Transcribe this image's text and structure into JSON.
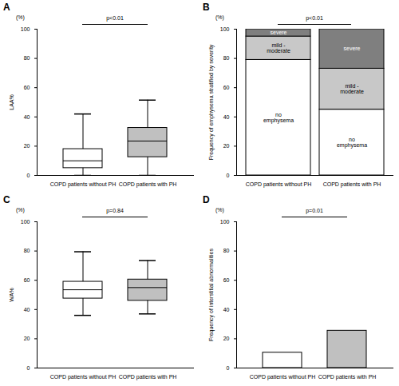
{
  "chart_data": [
    {
      "type": "box",
      "panel": "A",
      "y_unit": "(%)",
      "annotation": "p<0.01",
      "y_label": "LAA%",
      "categories": [
        "COPD patients without PH",
        "COPD patients with PH"
      ],
      "boxes": [
        {
          "whisker_low": 0,
          "q1": 5,
          "median": 10,
          "q3": 18,
          "whisker_high": 42
        },
        {
          "whisker_low": 0,
          "q1": 12.5,
          "median": 23.5,
          "q3": 32.5,
          "whisker_high": 51.5
        }
      ],
      "colors": [
        "#ffffff",
        "#c0c0c0"
      ],
      "ylim": [
        0,
        100
      ],
      "yticks": [
        0,
        20,
        40,
        60,
        80,
        100
      ]
    },
    {
      "type": "bar",
      "stacked": true,
      "data_labels": true,
      "panel": "B",
      "y_unit": "(%)",
      "annotation": "p<0.01",
      "y_label": "Frequency of emphysema stratified by severity",
      "categories": [
        "COPD patients without PH",
        "COPD patients with PH"
      ],
      "series": [
        {
          "name": "no emphysema",
          "color": "#ffffff",
          "values": [
            79,
            45
          ]
        },
        {
          "name": "mild - moderate",
          "color": "#c8c8c8",
          "values": [
            16,
            28
          ]
        },
        {
          "name": "severe",
          "color": "#7f7f7f",
          "values": [
            5,
            27
          ]
        }
      ],
      "ylim": [
        0,
        100
      ],
      "yticks": [
        0,
        20,
        40,
        60,
        80,
        100
      ]
    },
    {
      "type": "box",
      "panel": "C",
      "y_unit": "(%)",
      "annotation": "p=0.84",
      "y_label": "WA%",
      "categories": [
        "COPD patients without PH",
        "COPD patients with PH"
      ],
      "boxes": [
        {
          "whisker_low": 36,
          "q1": 47.5,
          "median": 53.5,
          "q3": 59,
          "whisker_high": 79.5
        },
        {
          "whisker_low": 37,
          "q1": 46,
          "median": 55,
          "q3": 60.5,
          "whisker_high": 73.5
        }
      ],
      "colors": [
        "#ffffff",
        "#c0c0c0"
      ],
      "ylim": [
        0,
        100
      ],
      "yticks": [
        0,
        20,
        40,
        60,
        80,
        100
      ]
    },
    {
      "type": "bar",
      "panel": "D",
      "y_unit": "(%)",
      "annotation": "p=0.01",
      "y_label": "Frequency of interstitial abnormalities",
      "categories": [
        "COPD patients without PH",
        "COPD patients with PH"
      ],
      "values": [
        10.5,
        25.5
      ],
      "colors": [
        "#ffffff",
        "#c0c0c0"
      ],
      "ylim": [
        0,
        100
      ],
      "yticks": [
        0,
        20,
        40,
        60,
        80,
        100
      ]
    }
  ]
}
